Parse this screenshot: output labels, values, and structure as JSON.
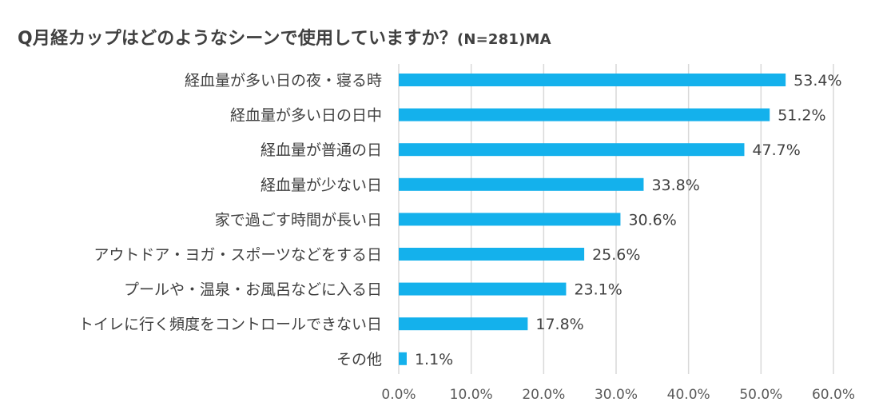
{
  "chart_data": {
    "type": "bar",
    "orientation": "horizontal",
    "title": "Q月経カップはどのようなシーンで使用していますか？",
    "subtitle": "(N=281)MA",
    "xlabel": "",
    "ylabel": "",
    "categories": [
      "経血量が多い日の夜・寝る時",
      "経血量が多い日の日中",
      "経血量が普通の日",
      "経血量が少ない日",
      "家で過ごす時間が長い日",
      "アウトドア・ヨガ・スポーツなどをする日",
      "プールや・温泉・お風呂などに入る日",
      "トイレに行く頻度をコントロールできない日",
      "その他"
    ],
    "values": [
      53.4,
      51.2,
      47.7,
      33.8,
      30.6,
      25.6,
      23.1,
      17.8,
      1.1
    ],
    "value_labels": [
      "53.4%",
      "51.2%",
      "47.7%",
      "33.8%",
      "30.6%",
      "25.6%",
      "23.1%",
      "17.8%",
      "1.1%"
    ],
    "xlim": [
      0,
      60
    ],
    "xticks": [
      0,
      10,
      20,
      30,
      40,
      50,
      60
    ],
    "xtick_labels": [
      "0.0%",
      "10.0%",
      "20.0%",
      "30.0%",
      "40.0%",
      "50.0%",
      "60.0%"
    ],
    "grid": true,
    "legend": "none",
    "bar_color": "#14b1ec",
    "grid_color": "#d9d9d9"
  }
}
